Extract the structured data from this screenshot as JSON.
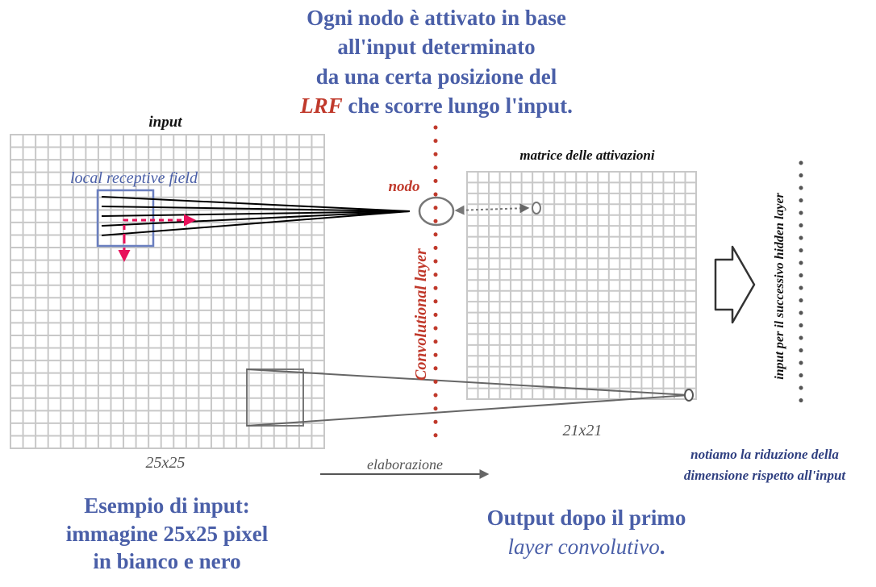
{
  "title": {
    "line1": "Ogni nodo è attivato in base",
    "line2": "all'input determinato",
    "line3": "da una certa posizione del",
    "line4_highlight": "LRF",
    "line4_rest": " che scorre lungo l'input."
  },
  "input_grid": {
    "label": "input",
    "lrf_label": "local receptive field",
    "size_label": "25x25",
    "cells": 25
  },
  "node": {
    "label": "nodo"
  },
  "layer": {
    "label": "Convolutional layer"
  },
  "activation_grid": {
    "label": "matrice delle attivazioni",
    "size_label": "21x21",
    "cells": 21
  },
  "process": {
    "label": "elaborazione"
  },
  "next_layer": {
    "label": "input per il successivo hidden layer"
  },
  "note": {
    "line1": "notiamo la riduzione della",
    "line2": "dimensione rispetto all'input"
  },
  "caption_left": {
    "line1": "Esempio di input:",
    "line2": "immagine 25x25 pixel",
    "line3": "in bianco e nero"
  },
  "caption_right": {
    "line1": "Output dopo il primo",
    "line2": "layer convolutivo",
    "line2_end": "."
  },
  "colors": {
    "title_blue": "#4a5fa8",
    "accent_red": "#c0392b",
    "arrow_pink": "#e8105a",
    "grid_gray": "#c8c8c8"
  }
}
